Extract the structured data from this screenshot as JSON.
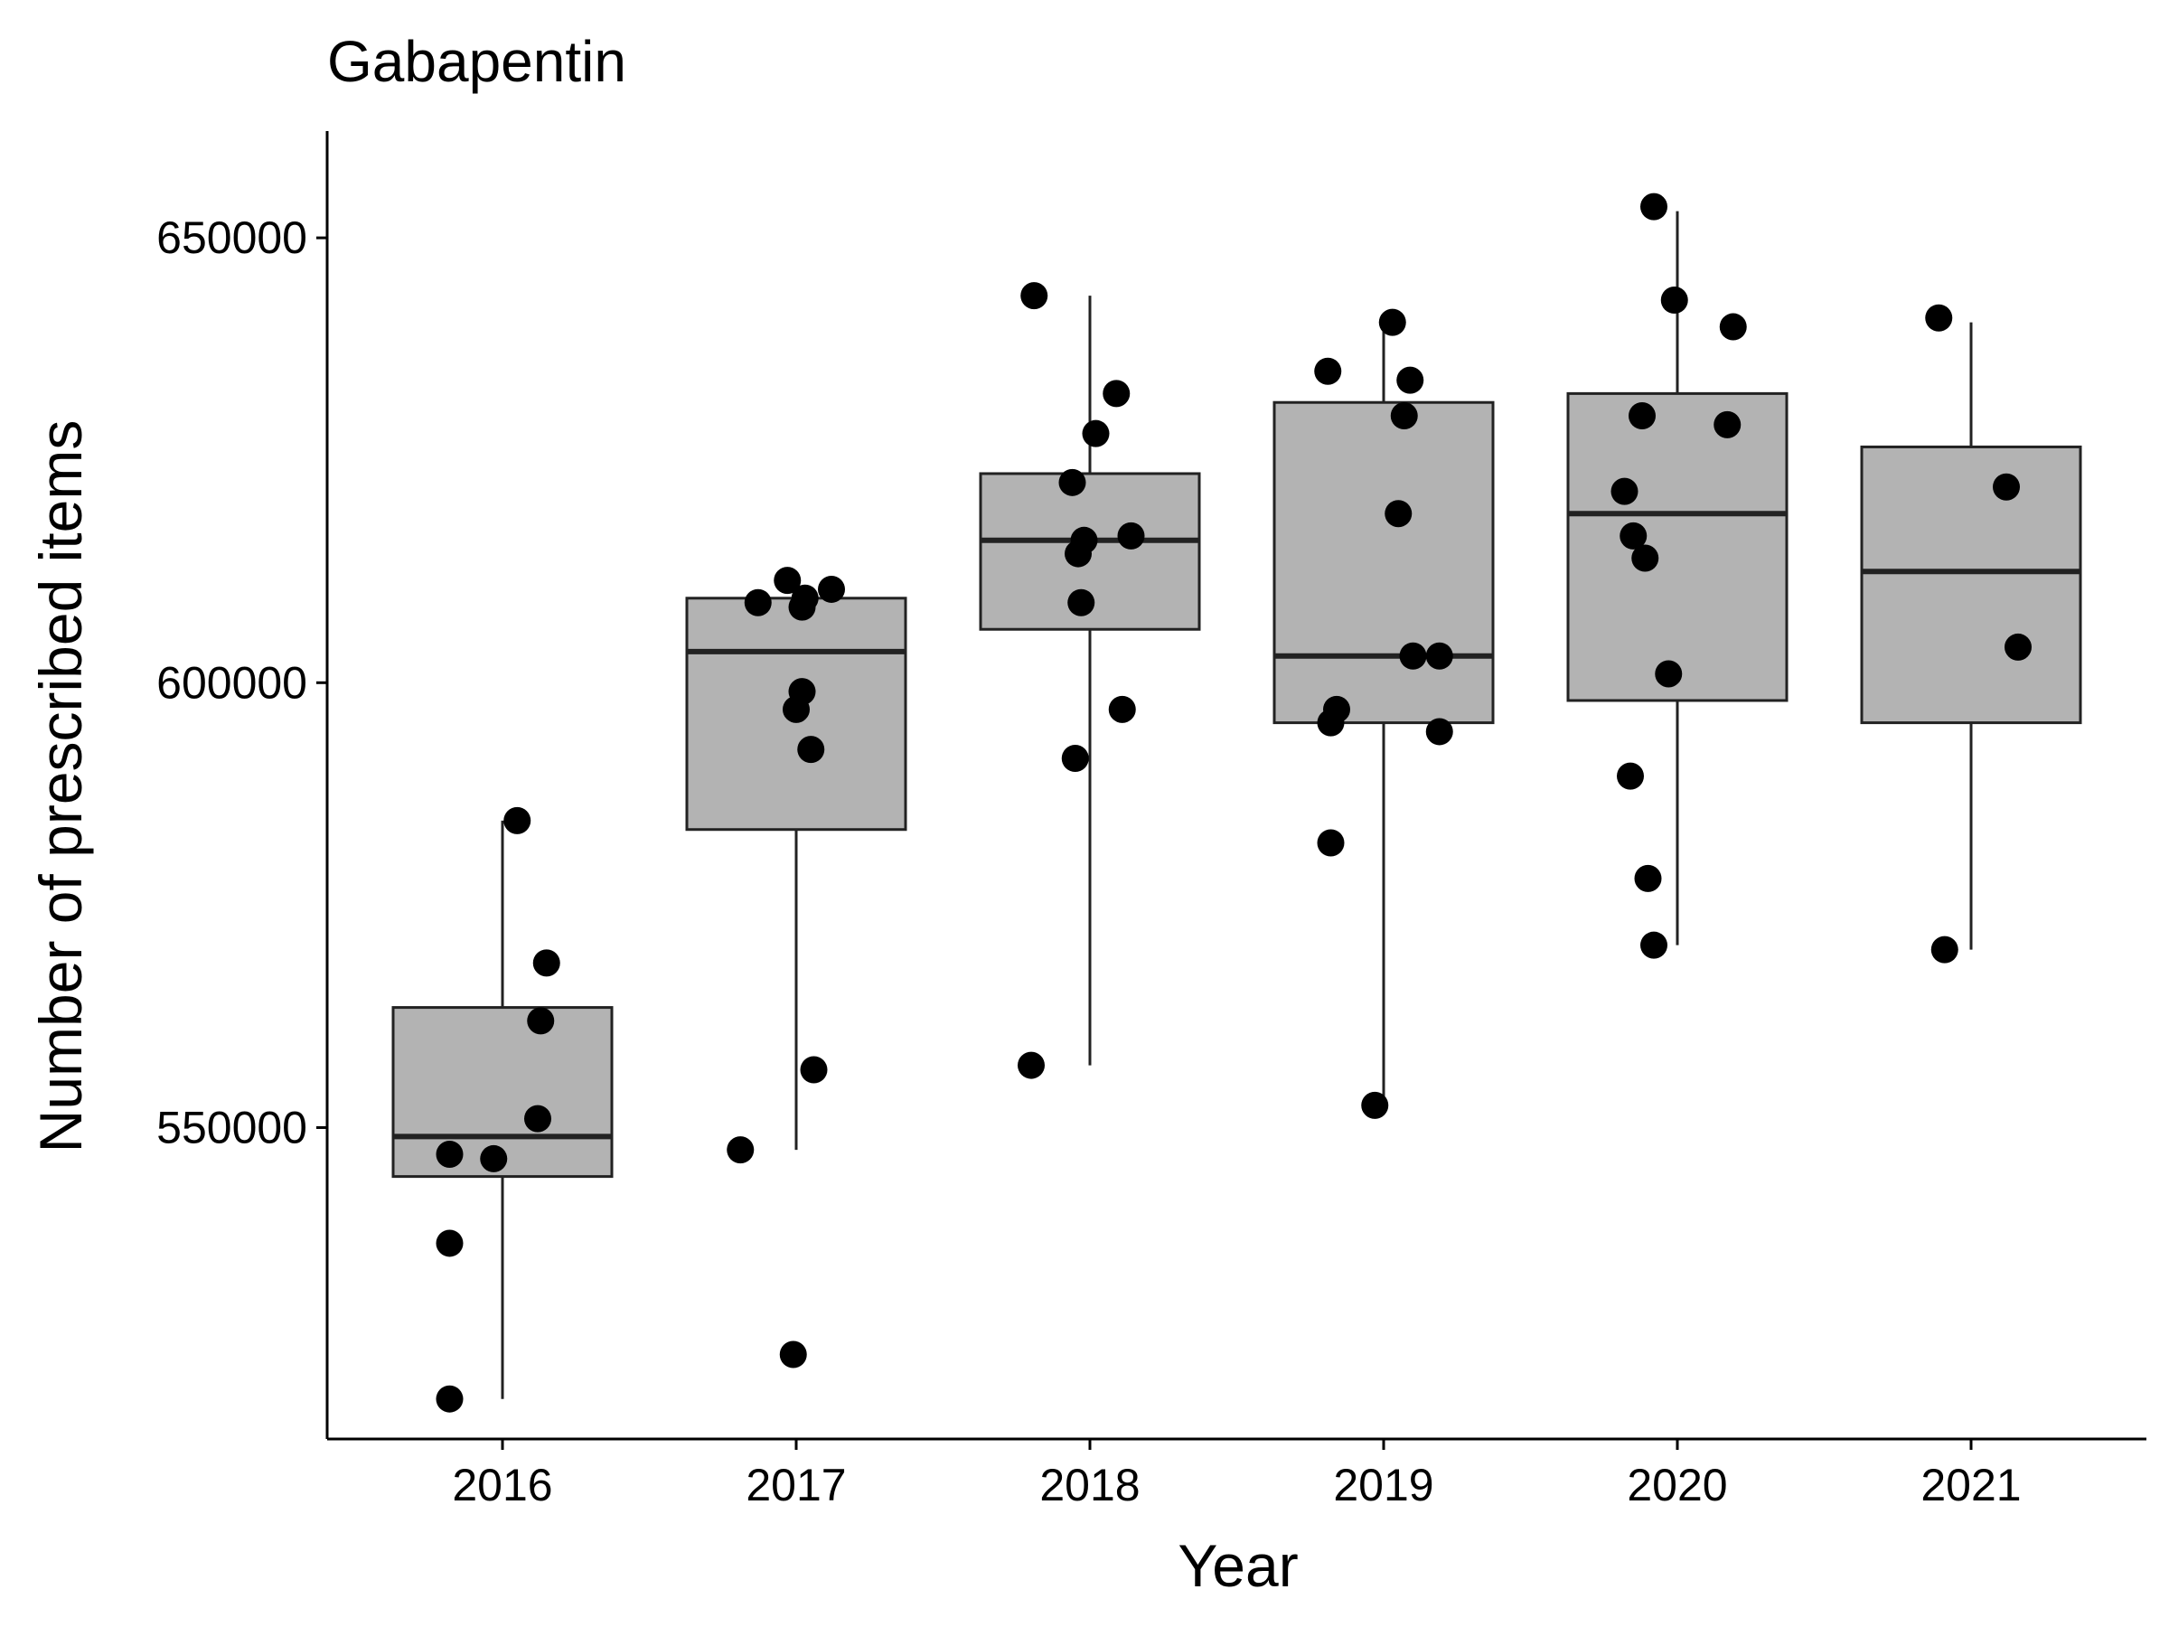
{
  "chart_data": {
    "type": "box",
    "title": "Gabapentin",
    "xlabel": "Year",
    "ylabel": "Number of prescribed items",
    "categories": [
      "2016",
      "2017",
      "2018",
      "2019",
      "2020",
      "2021"
    ],
    "yticks": [
      550000,
      600000,
      650000
    ],
    "ytick_labels": [
      "550000",
      "600000",
      "650000"
    ],
    "ylim": [
      515000,
      662000
    ],
    "grid": false,
    "legend": "none",
    "colors": {
      "box_fill": "#b3b3b3",
      "box_line": "#222222",
      "point": "#000000",
      "axis": "#000000"
    },
    "boxes": [
      {
        "category": "2016",
        "whisker_low": 519500,
        "q1": 544500,
        "median": 549000,
        "q3": 563500,
        "whisker_high": 584500
      },
      {
        "category": "2017",
        "whisker_low": 547500,
        "q1": 583500,
        "median": 603500,
        "q3": 609500,
        "whisker_high": 610500
      },
      {
        "category": "2018",
        "whisker_low": 557000,
        "q1": 606000,
        "median": 616000,
        "q3": 623500,
        "whisker_high": 643500
      },
      {
        "category": "2019",
        "whisker_low": 552500,
        "q1": 595500,
        "median": 603000,
        "q3": 631500,
        "whisker_high": 640500
      },
      {
        "category": "2020",
        "whisker_low": 570500,
        "q1": 598000,
        "median": 619000,
        "q3": 632500,
        "whisker_high": 653000
      },
      {
        "category": "2021",
        "whisker_low": 570000,
        "q1": 595500,
        "median": 612500,
        "q3": 626500,
        "whisker_high": 640500
      }
    ],
    "points": [
      {
        "category": "2016",
        "jitter": -0.18,
        "y": 519500
      },
      {
        "category": "2016",
        "jitter": -0.18,
        "y": 537000
      },
      {
        "category": "2016",
        "jitter": -0.18,
        "y": 547000
      },
      {
        "category": "2016",
        "jitter": -0.03,
        "y": 546500
      },
      {
        "category": "2016",
        "jitter": 0.12,
        "y": 551000
      },
      {
        "category": "2016",
        "jitter": 0.13,
        "y": 562000
      },
      {
        "category": "2016",
        "jitter": 0.15,
        "y": 568500
      },
      {
        "category": "2016",
        "jitter": 0.05,
        "y": 584500
      },
      {
        "category": "2017",
        "jitter": -0.01,
        "y": 524500
      },
      {
        "category": "2017",
        "jitter": -0.19,
        "y": 547500
      },
      {
        "category": "2017",
        "jitter": 0.06,
        "y": 556500
      },
      {
        "category": "2017",
        "jitter": 0.05,
        "y": 592500
      },
      {
        "category": "2017",
        "jitter": 0.0,
        "y": 597000
      },
      {
        "category": "2017",
        "jitter": 0.02,
        "y": 599000
      },
      {
        "category": "2017",
        "jitter": -0.13,
        "y": 609000
      },
      {
        "category": "2017",
        "jitter": 0.02,
        "y": 608500
      },
      {
        "category": "2017",
        "jitter": 0.03,
        "y": 609500
      },
      {
        "category": "2017",
        "jitter": -0.03,
        "y": 611500
      },
      {
        "category": "2017",
        "jitter": 0.12,
        "y": 610500
      },
      {
        "category": "2018",
        "jitter": -0.2,
        "y": 557000
      },
      {
        "category": "2018",
        "jitter": -0.05,
        "y": 591500
      },
      {
        "category": "2018",
        "jitter": 0.11,
        "y": 597000
      },
      {
        "category": "2018",
        "jitter": -0.03,
        "y": 609000
      },
      {
        "category": "2018",
        "jitter": -0.04,
        "y": 614500
      },
      {
        "category": "2018",
        "jitter": -0.02,
        "y": 616000
      },
      {
        "category": "2018",
        "jitter": 0.14,
        "y": 616500
      },
      {
        "category": "2018",
        "jitter": -0.06,
        "y": 622500
      },
      {
        "category": "2018",
        "jitter": 0.02,
        "y": 628000
      },
      {
        "category": "2018",
        "jitter": 0.09,
        "y": 632500
      },
      {
        "category": "2018",
        "jitter": -0.19,
        "y": 643500
      },
      {
        "category": "2019",
        "jitter": -0.03,
        "y": 552500
      },
      {
        "category": "2019",
        "jitter": -0.18,
        "y": 582000
      },
      {
        "category": "2019",
        "jitter": -0.18,
        "y": 595500
      },
      {
        "category": "2019",
        "jitter": -0.16,
        "y": 597000
      },
      {
        "category": "2019",
        "jitter": 0.19,
        "y": 594500
      },
      {
        "category": "2019",
        "jitter": 0.1,
        "y": 603000
      },
      {
        "category": "2019",
        "jitter": 0.19,
        "y": 603000
      },
      {
        "category": "2019",
        "jitter": 0.05,
        "y": 619000
      },
      {
        "category": "2019",
        "jitter": 0.07,
        "y": 630000
      },
      {
        "category": "2019",
        "jitter": 0.09,
        "y": 634000
      },
      {
        "category": "2019",
        "jitter": -0.19,
        "y": 635000
      },
      {
        "category": "2019",
        "jitter": 0.03,
        "y": 640500
      },
      {
        "category": "2020",
        "jitter": -0.08,
        "y": 570500
      },
      {
        "category": "2020",
        "jitter": -0.1,
        "y": 578000
      },
      {
        "category": "2020",
        "jitter": -0.16,
        "y": 589500
      },
      {
        "category": "2020",
        "jitter": -0.03,
        "y": 601000
      },
      {
        "category": "2020",
        "jitter": -0.11,
        "y": 614000
      },
      {
        "category": "2020",
        "jitter": -0.15,
        "y": 616500
      },
      {
        "category": "2020",
        "jitter": -0.18,
        "y": 621500
      },
      {
        "category": "2020",
        "jitter": 0.17,
        "y": 629000
      },
      {
        "category": "2020",
        "jitter": -0.12,
        "y": 630000
      },
      {
        "category": "2020",
        "jitter": 0.19,
        "y": 640000
      },
      {
        "category": "2020",
        "jitter": -0.01,
        "y": 643000
      },
      {
        "category": "2020",
        "jitter": -0.08,
        "y": 653500
      },
      {
        "category": "2021",
        "jitter": -0.09,
        "y": 570000
      },
      {
        "category": "2021",
        "jitter": 0.16,
        "y": 604000
      },
      {
        "category": "2021",
        "jitter": 0.12,
        "y": 622000
      },
      {
        "category": "2021",
        "jitter": -0.11,
        "y": 641000
      }
    ]
  }
}
